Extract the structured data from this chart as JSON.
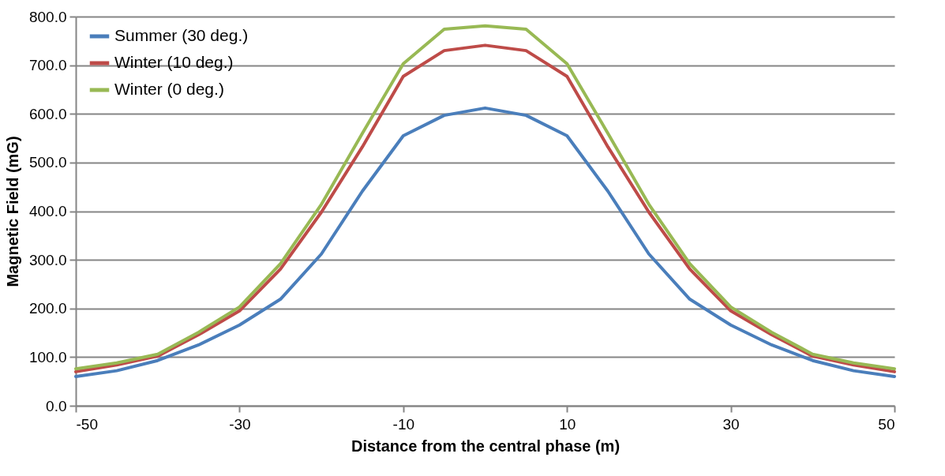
{
  "chart_data": {
    "type": "line",
    "xlabel": "Distance from the central phase (m)",
    "ylabel": "Magnetic Field (mG)",
    "x": [
      -50,
      -45,
      -40,
      -35,
      -30,
      -25,
      -20,
      -15,
      -10,
      -5,
      0,
      5,
      10,
      15,
      20,
      25,
      30,
      35,
      40,
      45,
      50
    ],
    "series": [
      {
        "name": "Summer (30 deg.)",
        "color": "#4a7ebb",
        "values": [
          60,
          72,
          93,
          125,
          166,
          219,
          312,
          441,
          555,
          597,
          612,
          597,
          555,
          441,
          312,
          219,
          166,
          125,
          93,
          72,
          60
        ]
      },
      {
        "name": "Winter (10 deg.)",
        "color": "#be4b48",
        "values": [
          70,
          84,
          102,
          146,
          195,
          281,
          398,
          532,
          677,
          730,
          741,
          730,
          677,
          532,
          398,
          281,
          195,
          146,
          102,
          84,
          70
        ]
      },
      {
        "name": "Winter (0 deg.)",
        "color": "#98b954",
        "values": [
          76,
          88,
          106,
          151,
          203,
          292,
          414,
          560,
          703,
          774,
          781,
          774,
          703,
          560,
          414,
          292,
          203,
          151,
          106,
          88,
          76
        ]
      }
    ],
    "xlim": [
      -50,
      50
    ],
    "xticks": [
      -50,
      -30,
      -10,
      10,
      30,
      50
    ],
    "ylim": [
      0,
      800
    ],
    "yticks": [
      {
        "value": 0,
        "label": "0.0"
      },
      {
        "value": 100,
        "label": "100.0"
      },
      {
        "value": 200,
        "label": "200.0"
      },
      {
        "value": 300,
        "label": "300.0"
      },
      {
        "value": 400,
        "label": "400.0"
      },
      {
        "value": 500,
        "label": "500.0"
      },
      {
        "value": 600,
        "label": "600.0"
      },
      {
        "value": 700,
        "label": "700.0"
      },
      {
        "value": 800,
        "label": "800.0"
      }
    ],
    "grid": "y",
    "legend": "top left",
    "marker": "none",
    "line_style": "solid"
  }
}
